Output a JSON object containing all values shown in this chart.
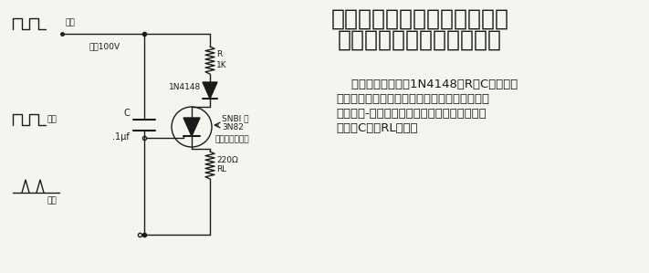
{
  "title_line1": "测速仪，单个脉冲发生器，功",
  "title_line2": "率损耗检测器，峰值检波器",
  "title_fontsize": 18,
  "body_line1": "    正向输入信号通过1N4148和R对C充电。二",
  "body_line2": "极管使可控硅开关保持关闭状态。负向输入信号",
  "body_line3": "提供阳极-控制极电流，用以触发可控硅开关导",
  "body_line4": "通，使C通过RL放电。",
  "body_fontsize": 9.5,
  "label_input_top": "输入",
  "label_high_voltage": "高达100V",
  "label_diode": "1N4148",
  "label_r": "R",
  "label_r_val": "1K",
  "label_c": "C",
  "label_c_val": ".1μf",
  "label_rl_val": "220Ω",
  "label_rl": "RL",
  "label_scr1": "SNBl 或",
  "label_scr2": "3N82",
  "label_scr3": "（视电压而定）",
  "label_input": "输入",
  "label_output": "输出",
  "bg_color": "#f5f5f0",
  "line_color": "#1a1a1a"
}
